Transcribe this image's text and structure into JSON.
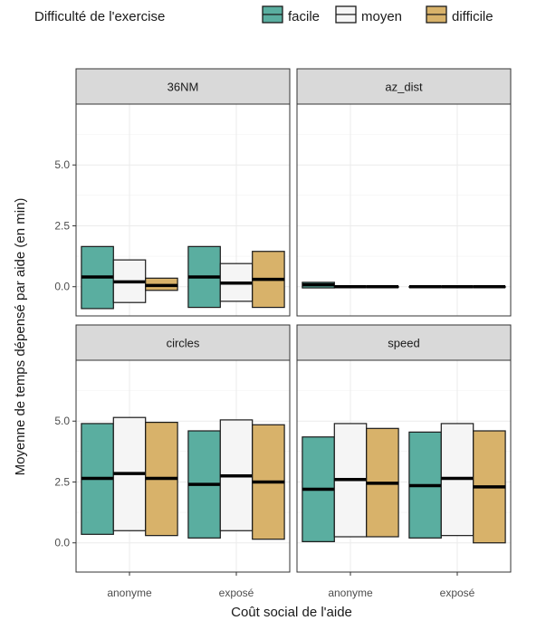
{
  "chart_data": {
    "type": "box",
    "xlabel": "Coût social de l'aide",
    "ylabel": "Moyenne de temps dépensé par aide (en min)",
    "legend": {
      "title": "Difficulté de l'exercise",
      "position": "top",
      "entries": [
        "facile",
        "moyen",
        "difficile"
      ]
    },
    "colors": {
      "facile": "#5aaea0",
      "moyen": "#f5f5f5",
      "difficile": "#d8b26a"
    },
    "categories": [
      "anonyme",
      "exposé"
    ],
    "facets": [
      {
        "name": "36NM",
        "ylim": [
          -1.2,
          7.5
        ],
        "yticks": [
          0.0,
          2.5,
          5.0
        ],
        "tick_labels": [
          "0.0",
          "2.5",
          "5.0"
        ],
        "boxes": [
          {
            "category": "anonyme",
            "group": "facile",
            "lower": -0.9,
            "middle": 0.4,
            "upper": 1.65
          },
          {
            "category": "anonyme",
            "group": "moyen",
            "lower": -0.65,
            "middle": 0.2,
            "upper": 1.1
          },
          {
            "category": "anonyme",
            "group": "difficile",
            "lower": -0.15,
            "middle": 0.05,
            "upper": 0.35
          },
          {
            "category": "exposé",
            "group": "facile",
            "lower": -0.85,
            "middle": 0.4,
            "upper": 1.65
          },
          {
            "category": "exposé",
            "group": "moyen",
            "lower": -0.6,
            "middle": 0.15,
            "upper": 0.95
          },
          {
            "category": "exposé",
            "group": "difficile",
            "lower": -0.85,
            "middle": 0.3,
            "upper": 1.45
          }
        ]
      },
      {
        "name": "az_dist",
        "ylim": [
          -1.2,
          7.5
        ],
        "yticks": [
          0.0,
          2.5,
          5.0
        ],
        "tick_labels": [
          "0.0",
          "2.5",
          "5.0"
        ],
        "boxes": [
          {
            "category": "anonyme",
            "group": "facile",
            "lower": -0.05,
            "middle": 0.08,
            "upper": 0.18
          },
          {
            "category": "anonyme",
            "group": "moyen",
            "lower": 0.0,
            "middle": 0.0,
            "upper": 0.0
          },
          {
            "category": "anonyme",
            "group": "difficile",
            "lower": 0.0,
            "middle": 0.0,
            "upper": 0.0
          },
          {
            "category": "exposé",
            "group": "facile",
            "lower": 0.0,
            "middle": 0.0,
            "upper": 0.0
          },
          {
            "category": "exposé",
            "group": "moyen",
            "lower": 0.0,
            "middle": 0.0,
            "upper": 0.0
          },
          {
            "category": "exposé",
            "group": "difficile",
            "lower": 0.0,
            "middle": 0.0,
            "upper": 0.0
          }
        ]
      },
      {
        "name": "circles",
        "ylim": [
          -1.2,
          7.5
        ],
        "yticks": [
          0.0,
          2.5,
          5.0
        ],
        "tick_labels": [
          "0.0",
          "2.5",
          "5.0"
        ],
        "boxes": [
          {
            "category": "anonyme",
            "group": "facile",
            "lower": 0.35,
            "middle": 2.65,
            "upper": 4.9
          },
          {
            "category": "anonyme",
            "group": "moyen",
            "lower": 0.5,
            "middle": 2.85,
            "upper": 5.15
          },
          {
            "category": "anonyme",
            "group": "difficile",
            "lower": 0.3,
            "middle": 2.65,
            "upper": 4.95
          },
          {
            "category": "exposé",
            "group": "facile",
            "lower": 0.2,
            "middle": 2.4,
            "upper": 4.6
          },
          {
            "category": "exposé",
            "group": "moyen",
            "lower": 0.5,
            "middle": 2.75,
            "upper": 5.05
          },
          {
            "category": "exposé",
            "group": "difficile",
            "lower": 0.15,
            "middle": 2.5,
            "upper": 4.85
          }
        ]
      },
      {
        "name": "speed",
        "ylim": [
          -1.2,
          7.5
        ],
        "yticks": [
          0.0,
          2.5,
          5.0
        ],
        "tick_labels": [
          "0.0",
          "2.5",
          "5.0"
        ],
        "boxes": [
          {
            "category": "anonyme",
            "group": "facile",
            "lower": 0.05,
            "middle": 2.2,
            "upper": 4.35
          },
          {
            "category": "anonyme",
            "group": "moyen",
            "lower": 0.25,
            "middle": 2.6,
            "upper": 4.9
          },
          {
            "category": "anonyme",
            "group": "difficile",
            "lower": 0.25,
            "middle": 2.45,
            "upper": 4.7
          },
          {
            "category": "exposé",
            "group": "facile",
            "lower": 0.2,
            "middle": 2.35,
            "upper": 4.55
          },
          {
            "category": "exposé",
            "group": "moyen",
            "lower": 0.3,
            "middle": 2.65,
            "upper": 4.9
          },
          {
            "category": "exposé",
            "group": "difficile",
            "lower": 0.0,
            "middle": 2.3,
            "upper": 4.6
          }
        ]
      }
    ]
  }
}
